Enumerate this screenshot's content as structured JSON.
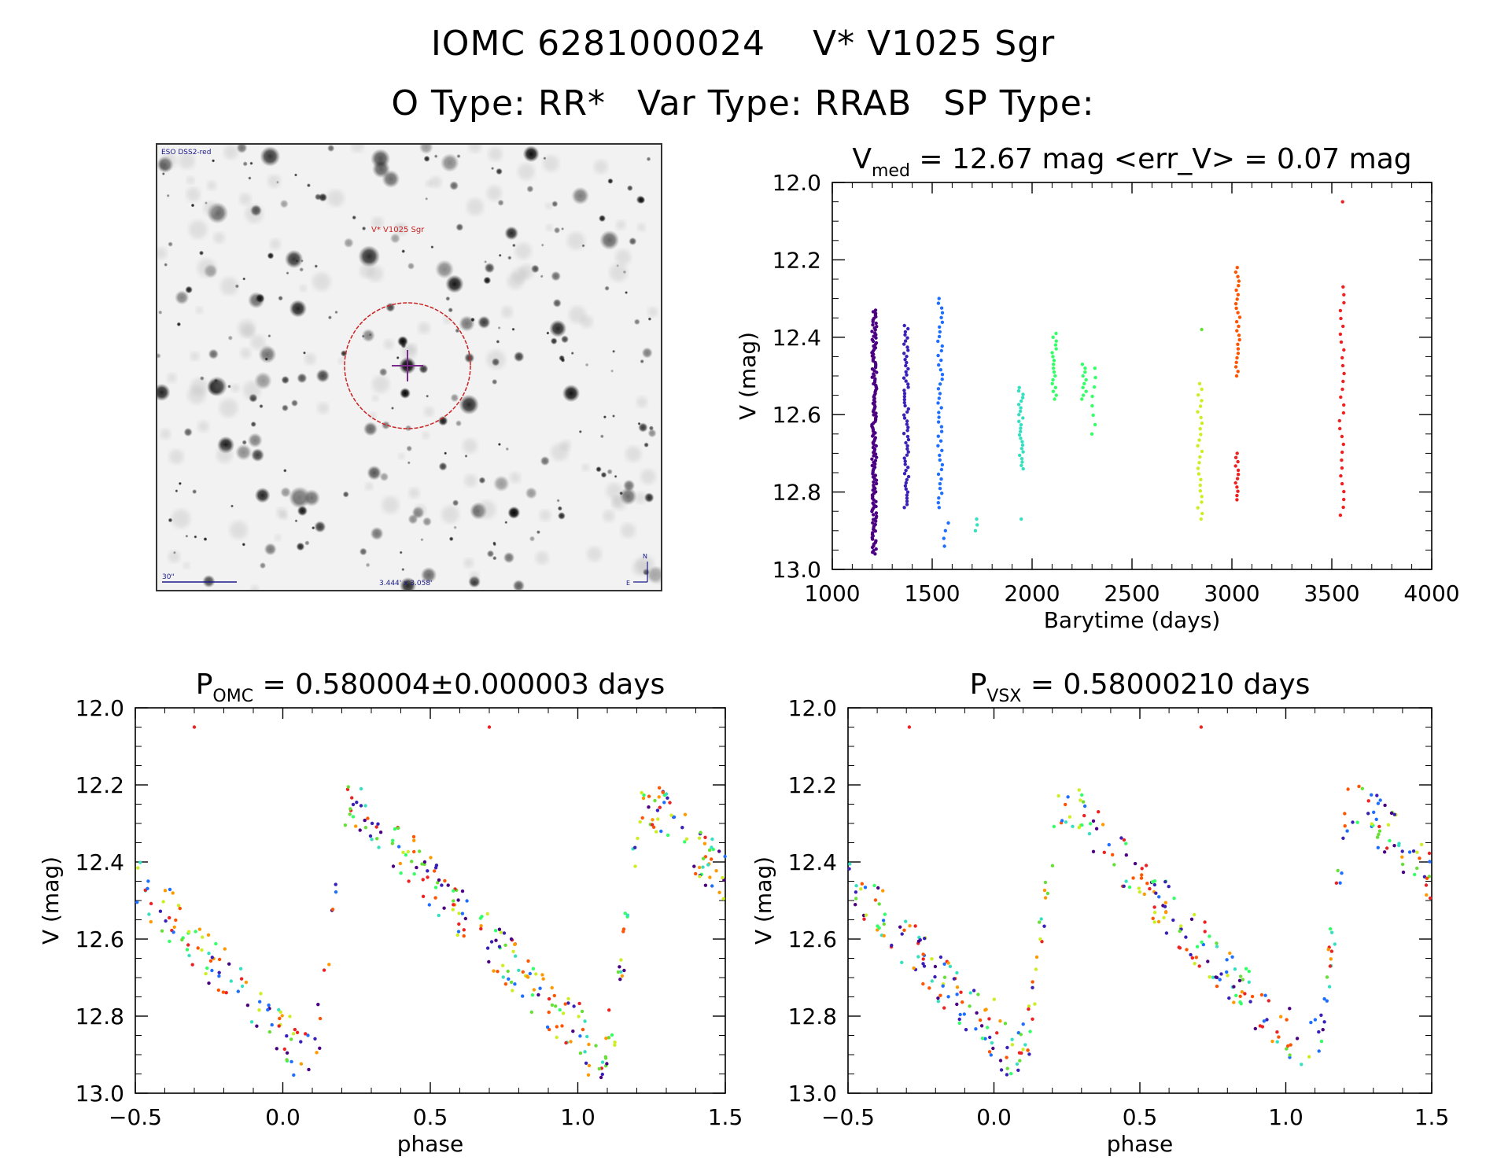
{
  "header": {
    "object_id": "IOMC 6281000024",
    "star_name": "V* V1025 Sgr",
    "object_type": "O Type: RR*",
    "var_type": "Var Type: RRAB",
    "sp_type": "SP Type:"
  },
  "finder": {
    "survey": "ESO DSS2-red",
    "target_label": "V* V1025 Sgr",
    "scale_label": "30\"",
    "fov_label": "3.444' x 3.058'",
    "north": "N",
    "east": "E"
  },
  "colors": {
    "axis": "#000000",
    "circle": "#cc2222",
    "season_palette": [
      "#4b0082",
      "#3a1fb8",
      "#1e6fff",
      "#35e0c0",
      "#33ff66",
      "#66e036",
      "#ccee22",
      "#ff9900",
      "#ff5500",
      "#ee2222"
    ]
  },
  "chart_data": [
    {
      "id": "lightcurve",
      "type": "scatter",
      "title_main": "V",
      "title_sub": "med",
      "title_rest": " = 12.67 mag <err_V> = 0.07 mag",
      "xlabel": "Barytime (days)",
      "ylabel": "V (mag)",
      "xlim": [
        1000,
        4000
      ],
      "ylim": [
        13.0,
        12.0
      ],
      "xticks": [
        1000,
        1500,
        2000,
        2500,
        3000,
        3500,
        4000
      ],
      "xtick_labels": [
        "1000",
        "1500",
        "2000",
        "2500",
        "3000",
        "3500",
        "4000"
      ],
      "yticks": [
        12.0,
        12.2,
        12.4,
        12.6,
        12.8,
        13.0
      ],
      "ytick_labels": [
        "12.0",
        "12.2",
        "12.4",
        "12.6",
        "12.8",
        "13.0"
      ],
      "seasons": [
        {
          "t": 1210,
          "color": "#4b0082",
          "ymin": 12.33,
          "ymax": 12.96,
          "n": 150
        },
        {
          "t": 1370,
          "color": "#3a1fb8",
          "ymin": 12.37,
          "ymax": 12.84,
          "n": 60
        },
        {
          "t": 1540,
          "color": "#1e6fff",
          "ymin": 12.3,
          "ymax": 12.84,
          "n": 45
        },
        {
          "t": 1570,
          "color": "#1e6fff",
          "ymin": 12.88,
          "ymax": 12.94,
          "n": 4
        },
        {
          "t": 1720,
          "color": "#35e0c0",
          "ymin": 12.87,
          "ymax": 12.9,
          "n": 3
        },
        {
          "t": 1945,
          "color": "#35e0c0",
          "ymin": 12.53,
          "ymax": 12.74,
          "n": 25
        },
        {
          "t": 1945,
          "color": "#35e0c0",
          "ymin": 12.87,
          "ymax": 12.87,
          "n": 1
        },
        {
          "t": 2110,
          "color": "#33ff66",
          "ymin": 12.39,
          "ymax": 12.56,
          "n": 18
        },
        {
          "t": 2260,
          "color": "#33ff66",
          "ymin": 12.47,
          "ymax": 12.56,
          "n": 10
        },
        {
          "t": 2310,
          "color": "#33ff66",
          "ymin": 12.48,
          "ymax": 12.65,
          "n": 8
        },
        {
          "t": 2840,
          "color": "#ccee22",
          "ymin": 12.52,
          "ymax": 12.87,
          "n": 25
        },
        {
          "t": 2860,
          "color": "#66e036",
          "ymin": 12.38,
          "ymax": 12.38,
          "n": 1
        },
        {
          "t": 3030,
          "color": "#ff5500",
          "ymin": 12.22,
          "ymax": 12.5,
          "n": 25
        },
        {
          "t": 3030,
          "color": "#ee2222",
          "ymin": 12.7,
          "ymax": 12.82,
          "n": 12
        },
        {
          "t": 3550,
          "color": "#ee2222",
          "ymin": 12.27,
          "ymax": 12.86,
          "n": 30
        },
        {
          "t": 3550,
          "color": "#ee2222",
          "ymin": 12.05,
          "ymax": 12.05,
          "n": 1
        }
      ]
    },
    {
      "id": "phase_omc",
      "type": "scatter",
      "title_main": "P",
      "title_sub": "OMC",
      "title_rest": " = 0.580004±0.000003 days",
      "xlabel": "phase",
      "ylabel": "V (mag)",
      "xlim": [
        -0.5,
        1.5
      ],
      "ylim": [
        13.0,
        12.0
      ],
      "xticks": [
        -0.5,
        0.0,
        0.5,
        1.0,
        1.5
      ],
      "xtick_labels": [
        "−0.5",
        "0.0",
        "0.5",
        "1.0",
        "1.5"
      ],
      "yticks": [
        12.0,
        12.2,
        12.4,
        12.6,
        12.8,
        13.0
      ],
      "ytick_labels": [
        "12.0",
        "12.2",
        "12.4",
        "12.6",
        "12.8",
        "13.0"
      ],
      "outlier_phase": -0.3,
      "outlier_mag": 12.05
    },
    {
      "id": "phase_vsx",
      "type": "scatter",
      "title_main": "P",
      "title_sub": "VSX",
      "title_rest": " = 0.58000210 days",
      "xlabel": "phase",
      "ylabel": "V (mag)",
      "xlim": [
        -0.5,
        1.5
      ],
      "ylim": [
        13.0,
        12.0
      ],
      "xticks": [
        -0.5,
        0.0,
        0.5,
        1.0,
        1.5
      ],
      "xtick_labels": [
        "−0.5",
        "0.0",
        "0.5",
        "1.0",
        "1.5"
      ],
      "yticks": [
        12.0,
        12.2,
        12.4,
        12.6,
        12.8,
        13.0
      ],
      "ytick_labels": [
        "12.0",
        "12.2",
        "12.4",
        "12.6",
        "12.8",
        "13.0"
      ],
      "outlier_phase": -0.29,
      "outlier_mag": 12.05
    }
  ]
}
